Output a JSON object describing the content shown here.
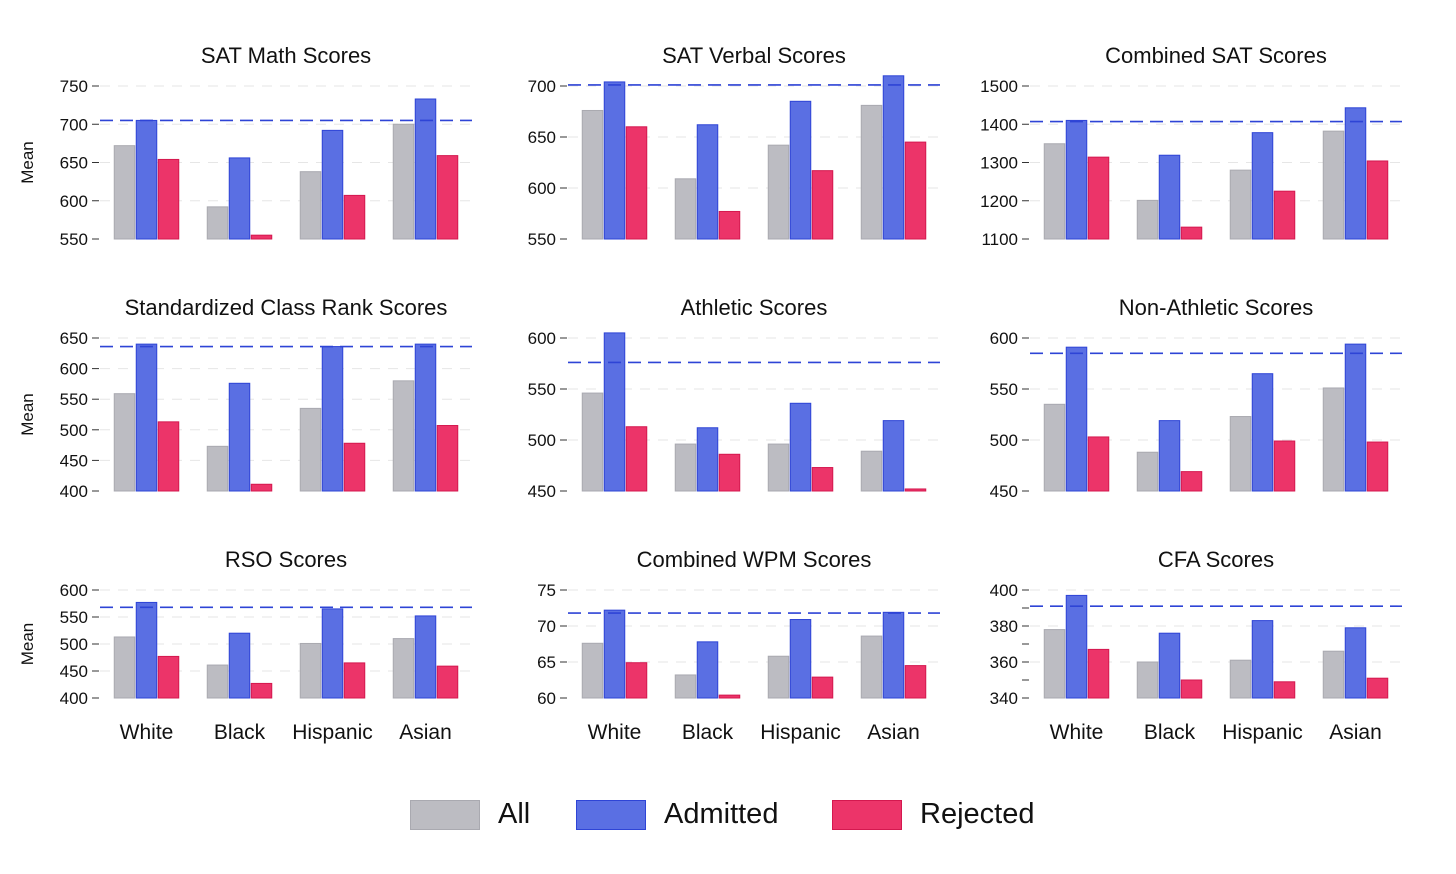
{
  "legend": [
    {
      "label": "All",
      "color": "#bcbcc2",
      "border": "#a9a9b0"
    },
    {
      "label": "Admitted",
      "color": "#5a6fe3",
      "border": "#2e44d6"
    },
    {
      "label": "Rejected",
      "color": "#ec3469",
      "border": "#d4184f"
    }
  ],
  "chart_data": [
    {
      "type": "bar",
      "title": "SAT Math Scores",
      "ylabel": "Mean",
      "categories": [
        "White",
        "Black",
        "Hispanic",
        "Asian"
      ],
      "show_xticks": false,
      "ylim": [
        550,
        752
      ],
      "yticks": [
        550,
        600,
        650,
        700,
        750
      ],
      "minor_ticks": [],
      "reference_line": 705,
      "series": [
        {
          "name": "All",
          "values": [
            672,
            592,
            638,
            700
          ]
        },
        {
          "name": "Admitted",
          "values": [
            705,
            656,
            692,
            733
          ]
        },
        {
          "name": "Rejected",
          "values": [
            654,
            555,
            607,
            659
          ]
        }
      ]
    },
    {
      "type": "bar",
      "title": "SAT Verbal Scores",
      "ylabel": "",
      "categories": [
        "White",
        "Black",
        "Hispanic",
        "Asian"
      ],
      "show_xticks": false,
      "ylim": [
        550,
        712
      ],
      "yticks": [
        550,
        600,
        650,
        700
      ],
      "minor_ticks": [],
      "reference_line": 701,
      "series": [
        {
          "name": "All",
          "values": [
            676,
            609,
            642,
            681
          ]
        },
        {
          "name": "Admitted",
          "values": [
            704,
            662,
            685,
            710
          ]
        },
        {
          "name": "Rejected",
          "values": [
            660,
            577,
            617,
            645
          ]
        }
      ]
    },
    {
      "type": "bar",
      "title": "Combined SAT Scores",
      "ylabel": "",
      "categories": [
        "White",
        "Black",
        "Hispanic",
        "Asian"
      ],
      "show_xticks": false,
      "ylim": [
        1100,
        1505
      ],
      "yticks": [
        1100,
        1200,
        1300,
        1400,
        1500
      ],
      "minor_ticks": [],
      "reference_line": 1407,
      "series": [
        {
          "name": "All",
          "values": [
            1349,
            1201,
            1280,
            1382
          ]
        },
        {
          "name": "Admitted",
          "values": [
            1410,
            1319,
            1378,
            1443
          ]
        },
        {
          "name": "Rejected",
          "values": [
            1314,
            1131,
            1225,
            1304
          ]
        }
      ]
    },
    {
      "type": "bar",
      "title": "Standardized Class Rank Scores",
      "ylabel": "Mean",
      "categories": [
        "White",
        "Black",
        "Hispanic",
        "Asian"
      ],
      "show_xticks": false,
      "ylim": [
        400,
        652
      ],
      "yticks": [
        400,
        450,
        500,
        550,
        600,
        650
      ],
      "minor_ticks": [],
      "reference_line": 636,
      "series": [
        {
          "name": "All",
          "values": [
            559,
            473,
            535,
            580
          ]
        },
        {
          "name": "Admitted",
          "values": [
            640,
            576,
            636,
            640
          ]
        },
        {
          "name": "Rejected",
          "values": [
            513,
            411,
            478,
            507
          ]
        }
      ]
    },
    {
      "type": "bar",
      "title": "Athletic Scores",
      "ylabel": "",
      "categories": [
        "White",
        "Black",
        "Hispanic",
        "Asian"
      ],
      "show_xticks": false,
      "ylim": [
        450,
        611
      ],
      "yticks": [
        450,
        500,
        550,
        600
      ],
      "minor_ticks": [],
      "reference_line": 576,
      "series": [
        {
          "name": "All",
          "values": [
            546,
            496,
            496,
            489
          ]
        },
        {
          "name": "Admitted",
          "values": [
            605,
            512,
            536,
            519
          ]
        },
        {
          "name": "Rejected",
          "values": [
            513,
            486,
            473,
            452
          ]
        }
      ]
    },
    {
      "type": "bar",
      "title": "Non-Athletic Scores",
      "ylabel": "",
      "categories": [
        "White",
        "Black",
        "Hispanic",
        "Asian"
      ],
      "show_xticks": false,
      "ylim": [
        450,
        604
      ],
      "yticks": [
        450,
        500,
        550,
        600
      ],
      "minor_ticks": [],
      "reference_line": 585,
      "series": [
        {
          "name": "All",
          "values": [
            535,
            488,
            523,
            551
          ]
        },
        {
          "name": "Admitted",
          "values": [
            591,
            519,
            565,
            594
          ]
        },
        {
          "name": "Rejected",
          "values": [
            503,
            469,
            499,
            498
          ]
        }
      ]
    },
    {
      "type": "bar",
      "title": "RSO Scores",
      "ylabel": "Mean",
      "categories": [
        "White",
        "Black",
        "Hispanic",
        "Asian"
      ],
      "show_xticks": true,
      "ylim": [
        400,
        602
      ],
      "yticks": [
        400,
        450,
        500,
        550,
        600
      ],
      "minor_ticks": [],
      "reference_line": 568,
      "series": [
        {
          "name": "All",
          "values": [
            513,
            461,
            501,
            510
          ]
        },
        {
          "name": "Admitted",
          "values": [
            577,
            520,
            565,
            552
          ]
        },
        {
          "name": "Rejected",
          "values": [
            477,
            427,
            465,
            459
          ]
        }
      ]
    },
    {
      "type": "bar",
      "title": "Combined WPM Scores",
      "ylabel": "",
      "categories": [
        "White",
        "Black",
        "Hispanic",
        "Asian"
      ],
      "show_xticks": true,
      "ylim": [
        60,
        75.5
      ],
      "yticks": [
        60,
        65,
        70,
        75
      ],
      "minor_ticks": [],
      "reference_line": 71.8,
      "series": [
        {
          "name": "All",
          "values": [
            67.6,
            63.2,
            65.8,
            68.6
          ]
        },
        {
          "name": "Admitted",
          "values": [
            72.2,
            67.8,
            70.9,
            71.9
          ]
        },
        {
          "name": "Rejected",
          "values": [
            64.9,
            60.4,
            62.9,
            64.5
          ]
        }
      ]
    },
    {
      "type": "bar",
      "title": "CFA Scores",
      "ylabel": "",
      "categories": [
        "White",
        "Black",
        "Hispanic",
        "Asian"
      ],
      "show_xticks": true,
      "ylim": [
        340,
        401
      ],
      "yticks": [
        340,
        360,
        380,
        400
      ],
      "minor_ticks": [
        350,
        370,
        390
      ],
      "reference_line": 391,
      "series": [
        {
          "name": "All",
          "values": [
            378,
            360,
            361,
            366
          ]
        },
        {
          "name": "Admitted",
          "values": [
            397,
            376,
            383,
            379
          ]
        },
        {
          "name": "Rejected",
          "values": [
            367,
            350,
            349,
            351
          ]
        }
      ]
    }
  ]
}
